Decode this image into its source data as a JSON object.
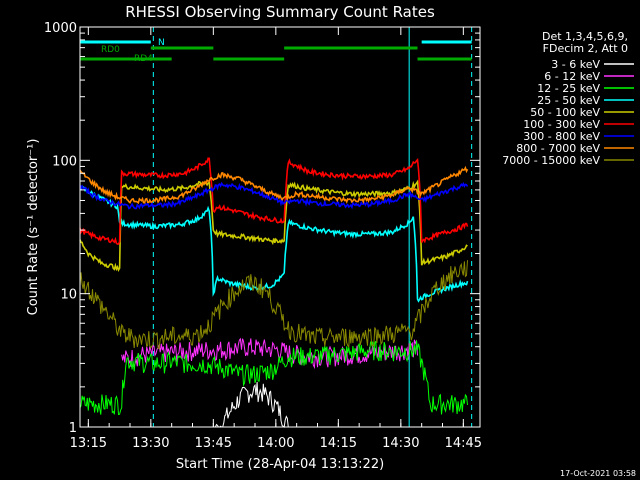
{
  "chart_data": {
    "type": "line",
    "title": "RHESSI Observing Summary Count Rates",
    "xlabel": "Start Time (28-Apr-04 13:13:22)",
    "ylabel": "Count Rate (s⁻¹ detector⁻¹)",
    "y_scale": "log",
    "xlim_minutes": [
      0,
      96
    ],
    "ylim": [
      1,
      1000
    ],
    "x_ticks": [
      {
        "t": 2,
        "label": "13:15"
      },
      {
        "t": 17,
        "label": "13:30"
      },
      {
        "t": 32,
        "label": "13:45"
      },
      {
        "t": 47,
        "label": "14:00"
      },
      {
        "t": 62,
        "label": "14:15"
      },
      {
        "t": 77,
        "label": "14:30"
      },
      {
        "t": 92,
        "label": "14:45"
      }
    ],
    "y_ticks": [
      {
        "v": 1,
        "label": "1"
      },
      {
        "v": 10,
        "label": "10"
      },
      {
        "v": 100,
        "label": "100"
      },
      {
        "v": 1000,
        "label": "1000"
      }
    ],
    "legend_header": [
      "Det 1,3,4,5,6,9,",
      "FDecim 2, Att 0"
    ],
    "legend_position": "right",
    "series": [
      {
        "name": "3 - 6 keV",
        "color": "#ffffff",
        "x": [
          0,
          20,
          34,
          36,
          38,
          40,
          42,
          44,
          46,
          48,
          50,
          55,
          60,
          65,
          70,
          75,
          80,
          81,
          85,
          90,
          96
        ],
        "y": [
          0,
          0,
          1.05,
          1.3,
          1.6,
          1.8,
          1.9,
          1.8,
          1.6,
          1.3,
          1.0,
          0,
          0,
          0,
          0,
          0,
          0,
          0,
          0,
          0,
          0
        ]
      },
      {
        "name": "6 - 12 keV",
        "color": "#ff33ff",
        "x": [
          10,
          12,
          15,
          20,
          25,
          30,
          33,
          40,
          48,
          50,
          55,
          60,
          65,
          70,
          75,
          80,
          81
        ],
        "y": [
          3.2,
          3.3,
          3.5,
          3.6,
          3.7,
          3.8,
          3.8,
          4.0,
          3.8,
          3.6,
          3.4,
          3.4,
          3.5,
          3.6,
          3.7,
          3.9,
          3.8
        ]
      },
      {
        "name": "12 - 25 keV",
        "color": "#00ff00",
        "x": [
          0,
          1,
          3,
          5,
          7,
          9,
          10,
          11,
          14,
          18,
          22,
          26,
          30,
          34,
          38,
          42,
          46,
          48,
          50,
          55,
          60,
          65,
          70,
          75,
          80,
          81,
          84,
          87,
          90,
          92,
          93
        ],
        "y": [
          1.5,
          1.5,
          1.5,
          1.5,
          1.5,
          1.5,
          1.5,
          3.2,
          3.1,
          3.0,
          3.1,
          3.0,
          3.0,
          2.8,
          2.5,
          2.5,
          2.7,
          3.0,
          3.4,
          3.4,
          3.5,
          3.6,
          3.8,
          3.7,
          3.8,
          3.8,
          1.5,
          1.5,
          1.5,
          1.5,
          1.5
        ]
      },
      {
        "name": "25 - 50 keV",
        "color": "#00ffff",
        "x": [
          0,
          3,
          6,
          9,
          9.5,
          12,
          18,
          24,
          28,
          30,
          31,
          32,
          33,
          36,
          42,
          46,
          48,
          49,
          50,
          55,
          60,
          65,
          70,
          75,
          79,
          80,
          81,
          84,
          88,
          92,
          93
        ],
        "y": [
          63,
          56,
          50,
          45,
          34,
          33,
          32,
          33,
          36,
          40,
          43,
          10,
          13,
          12,
          11,
          11.5,
          13,
          14,
          34,
          31,
          29,
          28,
          28,
          29,
          34,
          38,
          9,
          10,
          11,
          12,
          12
        ]
      },
      {
        "name": "50 - 100 keV",
        "color": "#cccc00",
        "x": [
          0,
          2,
          5,
          8,
          9.5,
          10,
          15,
          20,
          25,
          28,
          31,
          32,
          33,
          38,
          42,
          46,
          49,
          50,
          55,
          60,
          65,
          70,
          75,
          79,
          81,
          82,
          85,
          88,
          91,
          93
        ],
        "y": [
          25,
          20,
          17,
          16,
          15,
          64,
          62,
          60,
          62,
          66,
          68,
          30,
          28,
          27,
          26,
          25,
          25,
          66,
          61,
          58,
          56,
          56,
          57,
          62,
          68,
          17,
          18,
          19,
          21,
          23
        ]
      },
      {
        "name": "100 - 300 keV",
        "color": "#ff0000",
        "x": [
          0,
          2,
          5,
          8,
          9.5,
          10,
          15,
          20,
          25,
          28,
          31,
          32,
          33,
          38,
          42,
          46,
          49,
          50,
          55,
          60,
          65,
          70,
          75,
          79,
          81,
          82,
          85,
          88,
          91,
          93
        ],
        "y": [
          30,
          28,
          26,
          25,
          24,
          80,
          78,
          77,
          80,
          88,
          102,
          42,
          45,
          41,
          38,
          36,
          35,
          97,
          82,
          78,
          76,
          76,
          78,
          87,
          102,
          25,
          27,
          29,
          31,
          33
        ]
      },
      {
        "name": "300 - 800 keV",
        "color": "#0000ff",
        "x": [
          0,
          3,
          6,
          9,
          12,
          16,
          20,
          24,
          28,
          31,
          34,
          38,
          42,
          46,
          49,
          52,
          56,
          60,
          65,
          70,
          75,
          79,
          82,
          86,
          90,
          93
        ],
        "y": [
          64,
          55,
          50,
          47,
          45,
          46,
          46,
          48,
          54,
          60,
          66,
          63,
          58,
          52,
          48,
          50,
          48,
          47,
          46,
          47,
          50,
          56,
          50,
          56,
          62,
          66
        ]
      },
      {
        "name": "800 - 7000 keV",
        "color": "#ff8800",
        "x": [
          0,
          3,
          6,
          9,
          12,
          16,
          20,
          24,
          28,
          31,
          34,
          38,
          42,
          46,
          49,
          52,
          56,
          60,
          65,
          70,
          75,
          79,
          82,
          86,
          90,
          93
        ],
        "y": [
          82,
          68,
          58,
          53,
          50,
          50,
          51,
          54,
          62,
          72,
          78,
          73,
          64,
          56,
          52,
          56,
          54,
          52,
          50,
          51,
          55,
          62,
          56,
          66,
          78,
          87
        ]
      },
      {
        "name": "7000 - 15000 keV",
        "color": "#888800",
        "x": [
          0,
          2,
          4,
          6,
          8,
          10,
          14,
          18,
          22,
          26,
          28,
          30,
          32,
          34,
          36,
          38,
          40,
          42,
          44,
          46,
          48,
          50,
          55,
          60,
          65,
          70,
          75,
          80,
          82,
          84,
          86,
          88,
          90,
          92,
          93
        ],
        "y": [
          13,
          11,
          9,
          7.5,
          6.2,
          5.0,
          4.6,
          4.6,
          4.8,
          4.8,
          5.0,
          5.4,
          6.5,
          8.0,
          9.5,
          11,
          12,
          12,
          11,
          9.0,
          7.0,
          5.5,
          4.7,
          4.7,
          4.8,
          4.9,
          5.0,
          5.4,
          7.2,
          9.5,
          11.5,
          13,
          14.5,
          15.5,
          15.5
        ]
      }
    ],
    "vlines": [
      {
        "t": 0,
        "color": "#00ffff",
        "style": "solid"
      },
      {
        "t": 17.6,
        "color": "#00ffff",
        "style": "dashed"
      },
      {
        "t": 79,
        "color": "#00ffff",
        "style": "solid"
      },
      {
        "t": 94,
        "color": "#00ffff",
        "style": "dashed"
      }
    ],
    "flag_bars": [
      {
        "label": "N",
        "color": "#00ffff",
        "segments": [
          [
            0,
            17
          ],
          [
            82,
            94
          ]
        ]
      },
      {
        "label": "RD0",
        "color": "#00aa00",
        "segments": [
          [
            17,
            32
          ],
          [
            49,
            81
          ]
        ]
      },
      {
        "label": "RD4",
        "color": "#00aa00",
        "segments": [
          [
            0,
            22
          ],
          [
            32,
            49
          ],
          [
            81,
            94
          ]
        ]
      }
    ],
    "timestamp": "17-Oct-2021 03:58"
  }
}
